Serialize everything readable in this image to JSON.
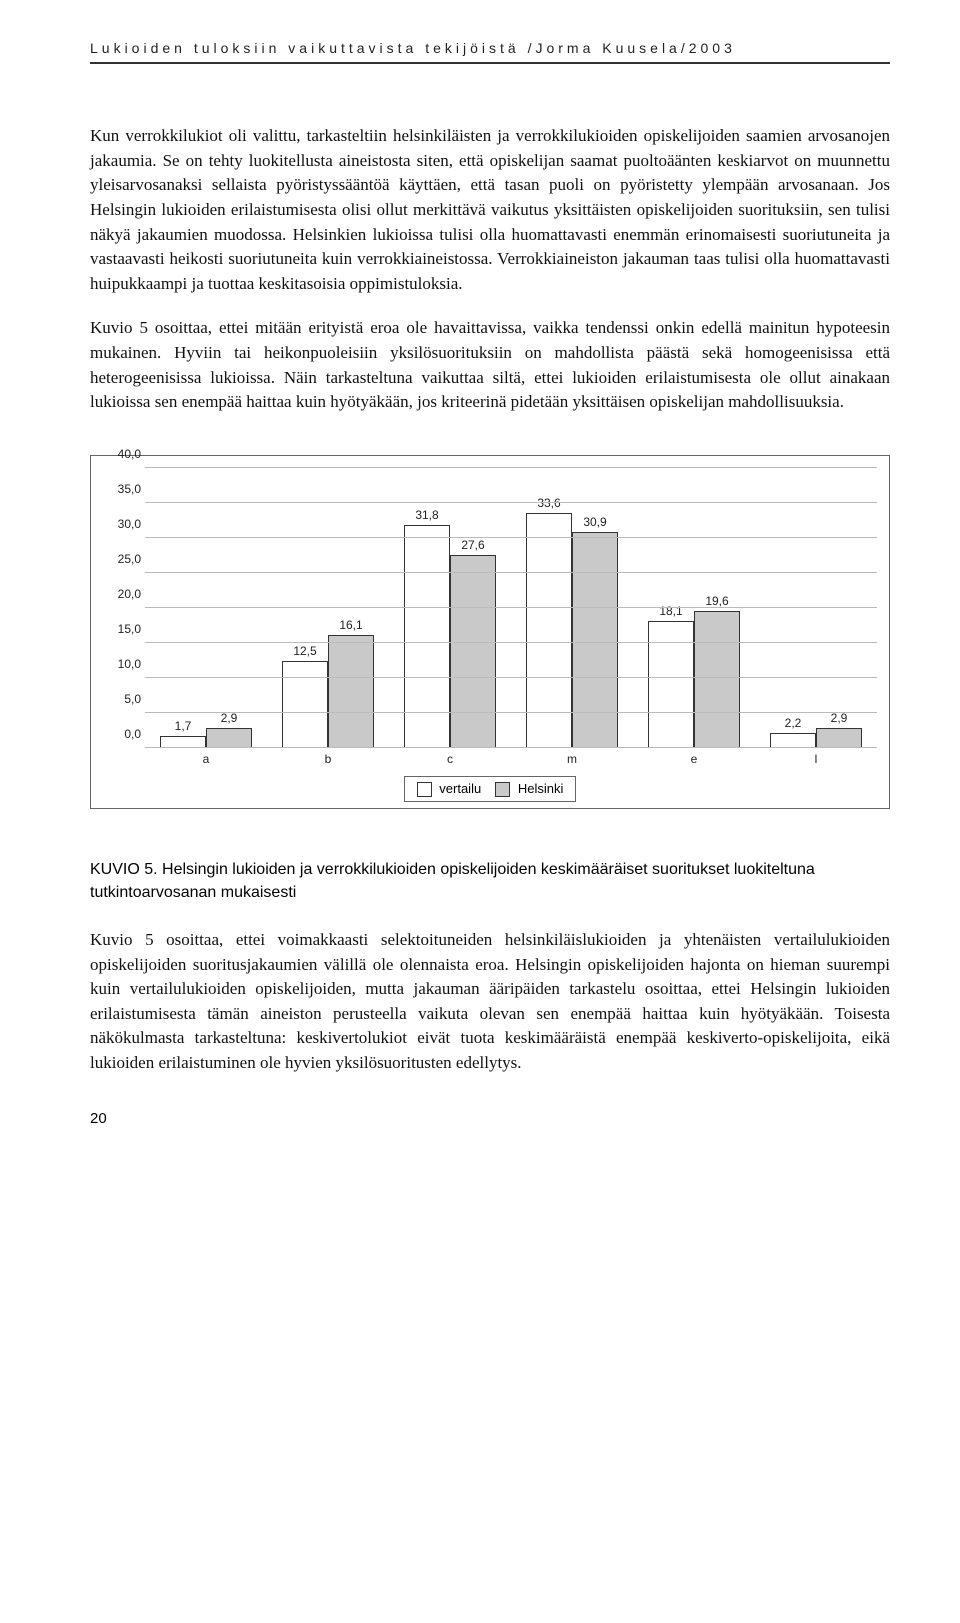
{
  "header": "Lukioiden tuloksiin vaikuttavista tekijöistä /Jorma Kuusela/2003",
  "para1": "Kun verrokkilukiot oli valittu, tarkasteltiin helsinkiläisten ja verrokkilukioiden opiskelijoiden saamien arvosanojen jakaumia. Se on tehty luokitellusta aineistosta siten, että opiskelijan saamat puoltoäänten keskiarvot on muunnettu yleisarvosanaksi sellaista pyöristyssääntöä käyttäen, että tasan puoli on pyöristetty ylempään arvosanaan. Jos Helsingin lukioiden erilaistumisesta olisi ollut merkittävä vaikutus yksittäisten opiskelijoiden suorituksiin, sen tulisi näkyä jakaumien muodossa. Helsinkien lukioissa tulisi olla huomattavasti enemmän erinomaisesti suoriutuneita ja vastaavasti heikosti suoriutuneita kuin verrokkiaineistossa. Verrokkiaineiston jakauman taas tulisi olla huomattavasti huipukkaampi ja tuottaa keskitasoisia oppimistuloksia.",
  "para2": "Kuvio 5 osoittaa, ettei mitään erityistä eroa ole havaittavissa, vaikka tendenssi onkin edellä mainitun hypoteesin mukainen. Hyviin tai heikonpuoleisiin yksilösuorituksiin on mahdollista päästä sekä homogeenisissa että heterogeenisissa lukioissa. Näin tarkasteltuna vaikuttaa siltä, ettei lukioiden erilaistumisesta ole ollut ainakaan lukioissa sen enempää haittaa kuin hyötyäkään, jos kriteerinä pidetään yksittäisen opiskelijan mahdollisuuksia.",
  "caption_label": "KUVIO 5.",
  "caption_text": "Helsingin lukioiden ja verrokkilukioiden opiskelijoiden keskimääräiset suoritukset luokiteltuna tutkintoarvosanan mukaisesti",
  "para3": "Kuvio 5 osoittaa, ettei voimakkaasti selektoituneiden helsinkiläislukioiden ja yhtenäisten vertailulukioiden opiskelijoiden suoritusjakaumien välillä ole olennaista eroa. Helsingin opiskelijoiden hajonta on hieman suurempi kuin vertailulukioiden opiskelijoiden, mutta jakauman ääripäiden tarkastelu osoittaa, ettei Helsingin lukioiden erilaistumisesta tämän aineiston perusteella vaikuta olevan sen enempää haittaa kuin hyötyäkään. Toisesta näkökulmasta tarkasteltuna: keskivertolukiot eivät tuota keskimääräistä enempää keskiverto-opiskelijoita, eikä lukioiden erilaistuminen ole hyvien yksilösuoritusten edellytys.",
  "page_number": "20",
  "chart": {
    "type": "bar",
    "y_max": 40,
    "y_step": 5,
    "y_ticks": [
      "0,0",
      "5,0",
      "10,0",
      "15,0",
      "20,0",
      "25,0",
      "30,0",
      "35,0",
      "40,0"
    ],
    "categories": [
      "a",
      "b",
      "c",
      "m",
      "e",
      "l"
    ],
    "series": [
      {
        "name": "vertailu",
        "color": "#ffffff",
        "values": [
          1.7,
          12.5,
          31.8,
          33.6,
          18.1,
          2.2
        ],
        "labels": [
          "1,7",
          "12,5",
          "31,8",
          "33,6",
          "18,1",
          "2,2"
        ]
      },
      {
        "name": "Helsinki",
        "color": "#c9c9c9",
        "values": [
          2.9,
          16.1,
          27.6,
          30.9,
          19.6,
          2.9
        ],
        "labels": [
          "2,9",
          "16,1",
          "27,6",
          "30,9",
          "19,6",
          "2,9"
        ]
      }
    ],
    "legend": [
      "vertailu",
      "Helsinki"
    ],
    "legend_colors": [
      "#ffffff",
      "#c9c9c9"
    ],
    "grid_color": "#bbbbbb",
    "border_color": "#666666",
    "bar_border": "#333333",
    "font_family": "Arial",
    "label_fontsize": 12
  }
}
